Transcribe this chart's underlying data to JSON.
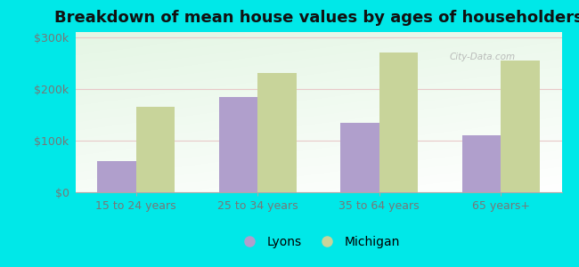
{
  "title": "Breakdown of mean house values by ages of householders",
  "categories": [
    "15 to 24 years",
    "25 to 34 years",
    "35 to 64 years",
    "65 years+"
  ],
  "lyons_values": [
    60000,
    185000,
    135000,
    110000
  ],
  "michigan_values": [
    165000,
    230000,
    270000,
    255000
  ],
  "lyons_color": "#b09fcc",
  "michigan_color": "#c8d49a",
  "background_color": "#00e8e8",
  "ylim": [
    0,
    310000
  ],
  "yticks": [
    0,
    100000,
    200000,
    300000
  ],
  "ytick_labels": [
    "$0",
    "$100k",
    "$200k",
    "$300k"
  ],
  "title_fontsize": 13,
  "tick_fontsize": 9,
  "legend_fontsize": 10,
  "bar_width": 0.32,
  "figure_width": 6.5,
  "figure_height": 3.0,
  "dpi": 100
}
